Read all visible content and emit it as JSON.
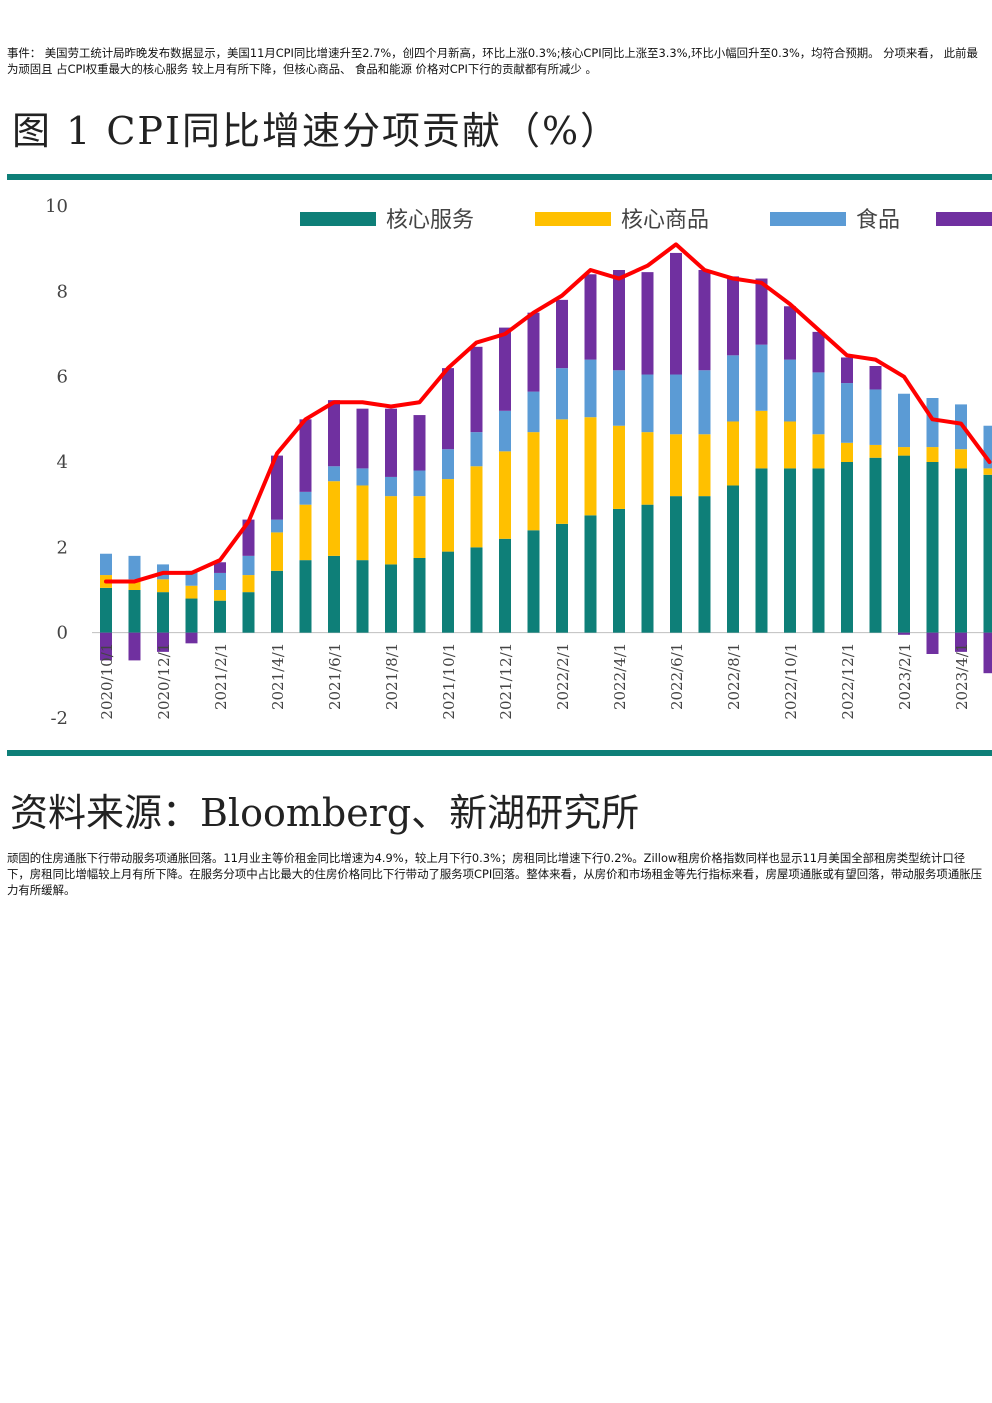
{
  "paragraphs": {
    "event": "事件： 美国劳工统计局昨晚发布数据显示，美国11月CPI同比增速升至2.7%，创四个月新高，环比上涨0.3%;核心CPI同比上涨至3.3%,环比小幅回升至0.3%，均符合预期。 分项来看， 此前最为顽固且 占CPI权重最大的核心服务 较上月有所下降，但核心商品、 食品和能源 价格对CPI下行的贡献都有所减少 。",
    "analysis": "顽固的住房通胀下行带动服务项通胀回落。11月业主等价租金同比增速为4.9%，较上月下行0.3%；房租同比增速下行0.2%。Zillow租房价格指数同样也显示11月美国全部租房类型统计口径下，房租同比增幅较上月有所下降。在服务分项中占比最大的住房价格同比下行带动了服务项CPI回落。整体来看，从房价和市场租金等先行指标来看，房屋项通胀或有望回落，带动服务项通胀压力有所缓解。"
  },
  "figure": {
    "title": "图 1 CPI同比增速分项贡献（%）",
    "source": "资料来源：Bloomberg、新湖研究所"
  },
  "colors": {
    "core_services": "#0e7f78",
    "core_goods": "#ffc000",
    "food": "#5b9bd5",
    "energy": "#7030a0",
    "cpi_line": "#ff0000",
    "rule": "#0e7f78"
  },
  "chart_data": {
    "type": "bar",
    "stacked": true,
    "ylim": [
      -2,
      10
    ],
    "yticks": [
      "-2",
      "0",
      "2",
      "4",
      "6",
      "8",
      "10"
    ],
    "legend_position": "top",
    "categories": [
      "2020/10/1",
      "2020/11/1",
      "2020/12/1",
      "2021/1/1",
      "2021/2/1",
      "2021/3/1",
      "2021/4/1",
      "2021/5/1",
      "2021/6/1",
      "2021/7/1",
      "2021/8/1",
      "2021/9/1",
      "2021/10/1",
      "2021/11/1",
      "2021/12/1",
      "2022/1/1",
      "2022/2/1",
      "2022/3/1",
      "2022/4/1",
      "2022/5/1",
      "2022/6/1",
      "2022/7/1",
      "2022/8/1",
      "2022/9/1",
      "2022/10/1",
      "2022/11/1",
      "2022/12/1",
      "2023/1/1",
      "2023/2/1",
      "2023/3/1",
      "2023/4/1",
      "2023/5/1"
    ],
    "xtick_labels": [
      "2020/10/1",
      "",
      "2020/12/1",
      "",
      "2021/2/1",
      "",
      "2021/4/1",
      "",
      "2021/6/1",
      "",
      "2021/8/1",
      "",
      "2021/10/1",
      "",
      "2021/12/1",
      "",
      "2022/2/1",
      "",
      "2022/4/1",
      "",
      "2022/6/1",
      "",
      "2022/8/1",
      "",
      "2022/10/1",
      "",
      "2022/12/1",
      "",
      "2023/2/1",
      "",
      "2023/4/1",
      ""
    ],
    "series": [
      {
        "name": "核心服务",
        "values": [
          1.05,
          1.0,
          0.95,
          0.8,
          0.75,
          0.95,
          1.45,
          1.7,
          1.8,
          1.7,
          1.6,
          1.75,
          1.9,
          2.0,
          2.2,
          2.4,
          2.55,
          2.75,
          2.9,
          3.0,
          3.2,
          3.2,
          3.45,
          3.85,
          3.85,
          3.85,
          4.0,
          4.1,
          4.15,
          4.0,
          3.85,
          3.7
        ]
      },
      {
        "name": "核心商品",
        "values": [
          0.3,
          0.25,
          0.3,
          0.3,
          0.25,
          0.4,
          0.9,
          1.3,
          1.75,
          1.75,
          1.6,
          1.45,
          1.7,
          1.9,
          2.05,
          2.3,
          2.45,
          2.3,
          1.95,
          1.7,
          1.45,
          1.45,
          1.5,
          1.35,
          1.1,
          0.8,
          0.45,
          0.3,
          0.2,
          0.35,
          0.45,
          0.15
        ]
      },
      {
        "name": "食品",
        "values": [
          0.5,
          0.55,
          0.35,
          0.35,
          0.4,
          0.45,
          0.3,
          0.3,
          0.35,
          0.4,
          0.45,
          0.6,
          0.7,
          0.8,
          0.95,
          0.95,
          1.2,
          1.35,
          1.3,
          1.35,
          1.4,
          1.5,
          1.55,
          1.55,
          1.45,
          1.45,
          1.4,
          1.3,
          1.25,
          1.15,
          1.05,
          1.0
        ]
      },
      {
        "name": "",
        "values": [
          -0.65,
          -0.65,
          -0.45,
          -0.25,
          0.25,
          0.85,
          1.5,
          1.7,
          1.55,
          1.4,
          1.6,
          1.3,
          1.9,
          2.0,
          1.95,
          1.85,
          1.6,
          2.0,
          2.35,
          2.4,
          2.85,
          2.35,
          1.85,
          1.55,
          1.25,
          0.95,
          0.6,
          0.55,
          -0.05,
          -0.5,
          -0.45,
          -0.95
        ]
      }
    ],
    "line": {
      "name": "CPI",
      "values": [
        1.2,
        1.2,
        1.4,
        1.4,
        1.7,
        2.6,
        4.2,
        5.0,
        5.4,
        5.4,
        5.3,
        5.4,
        6.2,
        6.8,
        7.0,
        7.5,
        7.9,
        8.5,
        8.3,
        8.6,
        9.1,
        8.5,
        8.3,
        8.2,
        7.7,
        7.1,
        6.5,
        6.4,
        6.0,
        5.0,
        4.9,
        4.0
      ]
    }
  }
}
